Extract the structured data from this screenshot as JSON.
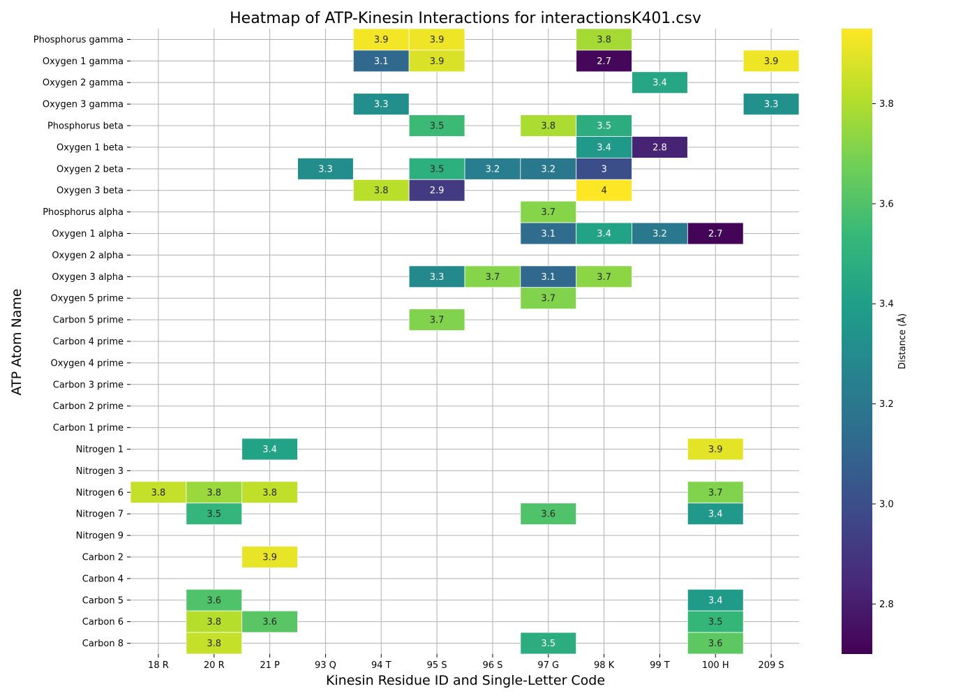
{
  "chart_data": {
    "type": "heatmap",
    "title": "Heatmap of ATP-Kinesin Interactions for interactionsK401.csv",
    "xlabel": "Kinesin Residue ID and Single-Letter Code",
    "ylabel": "ATP Atom Name",
    "colorbar_label": "Distance (Å)",
    "colormap": "viridis",
    "vmin": 2.7,
    "vmax": 3.95,
    "colorbar_ticks": [
      "2.8",
      "3.0",
      "3.2",
      "3.4",
      "3.6",
      "3.8"
    ],
    "grid": true,
    "x_categories": [
      "18 R",
      "20 R",
      "21 P",
      "93 Q",
      "94 T",
      "95 S",
      "96 S",
      "97 G",
      "98 K",
      "99 T",
      "100 H",
      "209 S"
    ],
    "y_categories": [
      "Phosphorus gamma",
      "Oxygen 1 gamma",
      "Oxygen 2 gamma",
      "Oxygen 3 gamma",
      "Phosphorus beta",
      "Oxygen 1 beta",
      "Oxygen 2 beta",
      "Oxygen 3 beta",
      "Phosphorus alpha",
      "Oxygen 1 alpha",
      "Oxygen 2 alpha",
      "Oxygen 3 alpha",
      "Oxygen 5 prime",
      "Carbon 5 prime",
      "Carbon 4 prime",
      "Oxygen 4 prime",
      "Carbon 3 prime",
      "Carbon 2 prime",
      "Carbon 1 prime",
      "Nitrogen 1",
      "Nitrogen 3",
      "Nitrogen 6",
      "Nitrogen 7",
      "Nitrogen 9",
      "Carbon 2",
      "Carbon 4",
      "Carbon 5",
      "Carbon 6",
      "Carbon 8"
    ],
    "cells": [
      {
        "y": "Phosphorus gamma",
        "x": "94 T",
        "value": 3.93,
        "label": "3.9"
      },
      {
        "y": "Phosphorus gamma",
        "x": "95 S",
        "value": 3.92,
        "label": "3.9"
      },
      {
        "y": "Phosphorus gamma",
        "x": "98 K",
        "value": 3.78,
        "label": "3.8"
      },
      {
        "y": "Oxygen 1 gamma",
        "x": "94 T",
        "value": 3.12,
        "label": "3.1"
      },
      {
        "y": "Oxygen 1 gamma",
        "x": "95 S",
        "value": 3.88,
        "label": "3.9"
      },
      {
        "y": "Oxygen 1 gamma",
        "x": "98 K",
        "value": 2.72,
        "label": "2.7"
      },
      {
        "y": "Oxygen 1 gamma",
        "x": "209 S",
        "value": 3.92,
        "label": "3.9"
      },
      {
        "y": "Oxygen 2 gamma",
        "x": "99 T",
        "value": 3.44,
        "label": "3.4"
      },
      {
        "y": "Oxygen 3 gamma",
        "x": "94 T",
        "value": 3.32,
        "label": "3.3"
      },
      {
        "y": "Oxygen 3 gamma",
        "x": "209 S",
        "value": 3.33,
        "label": "3.3"
      },
      {
        "y": "Phosphorus beta",
        "x": "95 S",
        "value": 3.55,
        "label": "3.5"
      },
      {
        "y": "Phosphorus beta",
        "x": "97 G",
        "value": 3.79,
        "label": "3.8"
      },
      {
        "y": "Phosphorus beta",
        "x": "98 K",
        "value": 3.48,
        "label": "3.5"
      },
      {
        "y": "Oxygen 1 beta",
        "x": "98 K",
        "value": 3.37,
        "label": "3.4"
      },
      {
        "y": "Oxygen 1 beta",
        "x": "99 T",
        "value": 2.82,
        "label": "2.8"
      },
      {
        "y": "Oxygen 2 beta",
        "x": "93 Q",
        "value": 3.31,
        "label": "3.3"
      },
      {
        "y": "Oxygen 2 beta",
        "x": "95 S",
        "value": 3.49,
        "label": "3.5"
      },
      {
        "y": "Oxygen 2 beta",
        "x": "96 S",
        "value": 3.23,
        "label": "3.2"
      },
      {
        "y": "Oxygen 2 beta",
        "x": "97 G",
        "value": 3.2,
        "label": "3.2"
      },
      {
        "y": "Oxygen 2 beta",
        "x": "98 K",
        "value": 3.0,
        "label": "3"
      },
      {
        "y": "Oxygen 3 beta",
        "x": "94 T",
        "value": 3.82,
        "label": "3.8"
      },
      {
        "y": "Oxygen 3 beta",
        "x": "95 S",
        "value": 2.92,
        "label": "2.9"
      },
      {
        "y": "Oxygen 3 beta",
        "x": "98 K",
        "value": 3.97,
        "label": "4"
      },
      {
        "y": "Phosphorus alpha",
        "x": "97 G",
        "value": 3.72,
        "label": "3.7"
      },
      {
        "y": "Oxygen 1 alpha",
        "x": "97 G",
        "value": 3.14,
        "label": "3.1"
      },
      {
        "y": "Oxygen 1 alpha",
        "x": "98 K",
        "value": 3.42,
        "label": "3.4"
      },
      {
        "y": "Oxygen 1 alpha",
        "x": "99 T",
        "value": 3.2,
        "label": "3.2"
      },
      {
        "y": "Oxygen 1 alpha",
        "x": "100 H",
        "value": 2.71,
        "label": "2.7"
      },
      {
        "y": "Oxygen 3 alpha",
        "x": "95 S",
        "value": 3.29,
        "label": "3.3"
      },
      {
        "y": "Oxygen 3 alpha",
        "x": "96 S",
        "value": 3.72,
        "label": "3.7"
      },
      {
        "y": "Oxygen 3 alpha",
        "x": "97 G",
        "value": 3.12,
        "label": "3.1"
      },
      {
        "y": "Oxygen 3 alpha",
        "x": "98 K",
        "value": 3.73,
        "label": "3.7"
      },
      {
        "y": "Oxygen 5 prime",
        "x": "97 G",
        "value": 3.71,
        "label": "3.7"
      },
      {
        "y": "Carbon 5 prime",
        "x": "95 S",
        "value": 3.71,
        "label": "3.7"
      },
      {
        "y": "Nitrogen 1",
        "x": "21 P",
        "value": 3.42,
        "label": "3.4"
      },
      {
        "y": "Nitrogen 1",
        "x": "100 H",
        "value": 3.9,
        "label": "3.9"
      },
      {
        "y": "Nitrogen 6",
        "x": "18 R",
        "value": 3.84,
        "label": "3.8"
      },
      {
        "y": "Nitrogen 6",
        "x": "20 R",
        "value": 3.76,
        "label": "3.8"
      },
      {
        "y": "Nitrogen 6",
        "x": "21 P",
        "value": 3.83,
        "label": "3.8"
      },
      {
        "y": "Nitrogen 6",
        "x": "100 H",
        "value": 3.71,
        "label": "3.7"
      },
      {
        "y": "Nitrogen 7",
        "x": "20 R",
        "value": 3.52,
        "label": "3.5"
      },
      {
        "y": "Nitrogen 7",
        "x": "97 G",
        "value": 3.6,
        "label": "3.6"
      },
      {
        "y": "Nitrogen 7",
        "x": "100 H",
        "value": 3.37,
        "label": "3.4"
      },
      {
        "y": "Carbon 2",
        "x": "21 P",
        "value": 3.91,
        "label": "3.9"
      },
      {
        "y": "Carbon 5",
        "x": "20 R",
        "value": 3.6,
        "label": "3.6"
      },
      {
        "y": "Carbon 5",
        "x": "100 H",
        "value": 3.38,
        "label": "3.4"
      },
      {
        "y": "Carbon 6",
        "x": "20 R",
        "value": 3.81,
        "label": "3.8"
      },
      {
        "y": "Carbon 6",
        "x": "21 P",
        "value": 3.62,
        "label": "3.6"
      },
      {
        "y": "Carbon 6",
        "x": "100 H",
        "value": 3.53,
        "label": "3.5"
      },
      {
        "y": "Carbon 8",
        "x": "20 R",
        "value": 3.84,
        "label": "3.8"
      },
      {
        "y": "Carbon 8",
        "x": "97 G",
        "value": 3.48,
        "label": "3.5"
      },
      {
        "y": "Carbon 8",
        "x": "100 H",
        "value": 3.63,
        "label": "3.6"
      }
    ]
  }
}
